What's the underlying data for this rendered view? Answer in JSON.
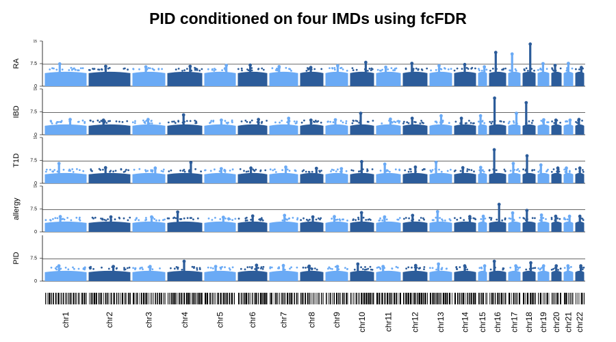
{
  "title": "PID conditioned on four IMDs using fcFDR",
  "colors": {
    "light": "#6aaaf5",
    "dark": "#2c5c9a",
    "hline": "#333333",
    "axis": "#000000"
  },
  "chart_data": {
    "type": "scatter",
    "subtype": "stacked manhattan plot",
    "title": "PID conditioned on four IMDs using fcFDR",
    "panels": [
      {
        "label": "RA",
        "yticks": [
          "0",
          "7.5",
          "15"
        ],
        "ylim": [
          0,
          15
        ],
        "hline": 7.3
      },
      {
        "label": "IBD",
        "yticks": [
          "0",
          "7.5",
          "15"
        ],
        "ylim": [
          0,
          15
        ],
        "hline": 7.3
      },
      {
        "label": "T1D",
        "yticks": [
          "0",
          "7.5",
          "15"
        ],
        "ylim": [
          0,
          15
        ],
        "hline": 7.3
      },
      {
        "label": "allergy",
        "yticks": [
          "0",
          "7.5",
          "15"
        ],
        "ylim": [
          0,
          15
        ],
        "hline": 7.3
      },
      {
        "label": "PID",
        "yticks": [
          "0",
          "7.5"
        ],
        "ylim": [
          0,
          15
        ],
        "hline": 7.3
      }
    ],
    "chromosomes": [
      "chr1",
      "chr2",
      "chr3",
      "chr4",
      "chr5",
      "chr6",
      "chr7",
      "chr8",
      "chr9",
      "chr10",
      "chr11",
      "chr12",
      "chr13",
      "chr14",
      "chr15",
      "chr16",
      "chr17",
      "chr18",
      "chr19",
      "chr20",
      "chr21",
      "chr22"
    ],
    "peaks": [
      [
        7.4,
        6.6,
        6.4,
        6.6,
        6.9,
        7.0,
        6.5,
        6.2,
        6.8,
        7.9,
        6.3,
        7.6,
        6.8,
        7.2,
        6.4,
        11.2,
        10.7,
        14.0,
        7.5,
        6.9,
        7.6,
        6.2
      ],
      [
        5.0,
        4.8,
        5.0,
        6.5,
        4.8,
        5.0,
        5.4,
        4.8,
        4.9,
        7.0,
        5.1,
        5.4,
        6.2,
        5.4,
        6.2,
        12.0,
        7.0,
        10.5,
        4.9,
        4.8,
        4.8,
        5.0
      ],
      [
        6.5,
        5.1,
        5.0,
        6.8,
        4.8,
        5.0,
        5.3,
        4.9,
        4.8,
        7.1,
        6.3,
        5.3,
        6.9,
        5.1,
        5.2,
        11.0,
        6.5,
        9.0,
        6.0,
        5.0,
        5.0,
        5.0
      ],
      [
        5.0,
        4.9,
        4.9,
        6.5,
        4.8,
        5.2,
        5.4,
        4.9,
        5.0,
        6.3,
        4.9,
        5.4,
        6.6,
        5.0,
        5.1,
        9.0,
        6.2,
        7.0,
        5.5,
        5.1,
        5.1,
        5.1
      ],
      [
        5.0,
        4.8,
        4.8,
        6.5,
        4.8,
        5.2,
        5.1,
        4.9,
        4.8,
        5.6,
        4.8,
        5.1,
        5.6,
        5.0,
        5.0,
        6.5,
        5.0,
        6.0,
        5.0,
        5.0,
        5.0,
        5.0
      ]
    ]
  }
}
